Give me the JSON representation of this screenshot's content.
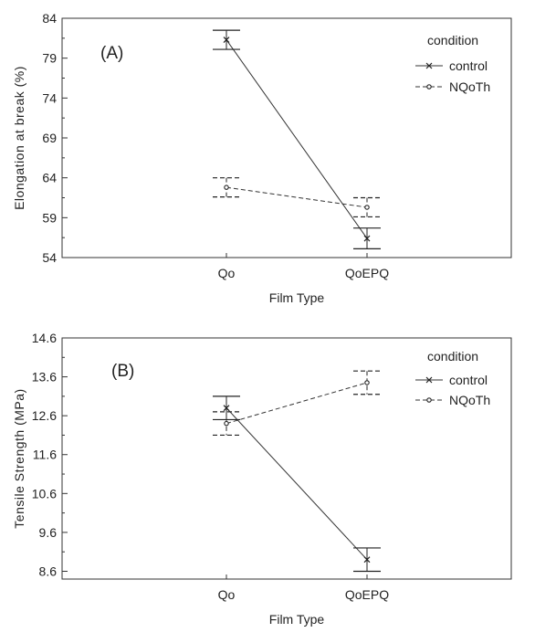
{
  "chart_data": [
    {
      "type": "line",
      "panel_label": "(A)",
      "xlabel": "Film Type",
      "ylabel": "Elongation at break (%)",
      "categories": [
        "Qo",
        "QoEPQ"
      ],
      "ylim": [
        54,
        84
      ],
      "yticks": [
        54,
        59,
        64,
        69,
        74,
        79,
        84
      ],
      "y_tick_labels": [
        "54",
        "59",
        "64",
        "69",
        "74",
        "79",
        "84"
      ],
      "legend": {
        "title": "condition",
        "position": "top-right"
      },
      "series": [
        {
          "name": "control",
          "marker": "x",
          "dash": "solid",
          "values": [
            81.3,
            56.4
          ],
          "error": [
            1.2,
            1.3
          ]
        },
        {
          "name": "NQoTh",
          "marker": "dot",
          "dash": "dashed",
          "values": [
            62.8,
            60.3
          ],
          "error": [
            1.2,
            1.2
          ]
        }
      ]
    },
    {
      "type": "line",
      "panel_label": "(B)",
      "xlabel": "Film Type",
      "ylabel": "Tensile Strength (MPa)",
      "categories": [
        "Qo",
        "QoEPQ"
      ],
      "ylim": [
        8.4,
        14.6
      ],
      "yticks": [
        8.6,
        9.6,
        10.6,
        11.6,
        12.6,
        13.6,
        14.6
      ],
      "y_tick_labels": [
        "8.6",
        "9.6",
        "10.6",
        "11.6",
        "12.6",
        "13.6",
        "14.6"
      ],
      "legend": {
        "title": "condition",
        "position": "top-right"
      },
      "series": [
        {
          "name": "control",
          "marker": "x",
          "dash": "solid",
          "values": [
            12.8,
            8.9
          ],
          "error": [
            0.3,
            0.3
          ]
        },
        {
          "name": "NQoTh",
          "marker": "dot",
          "dash": "dashed",
          "values": [
            12.4,
            13.45
          ],
          "error": [
            0.3,
            0.3
          ]
        }
      ]
    }
  ]
}
